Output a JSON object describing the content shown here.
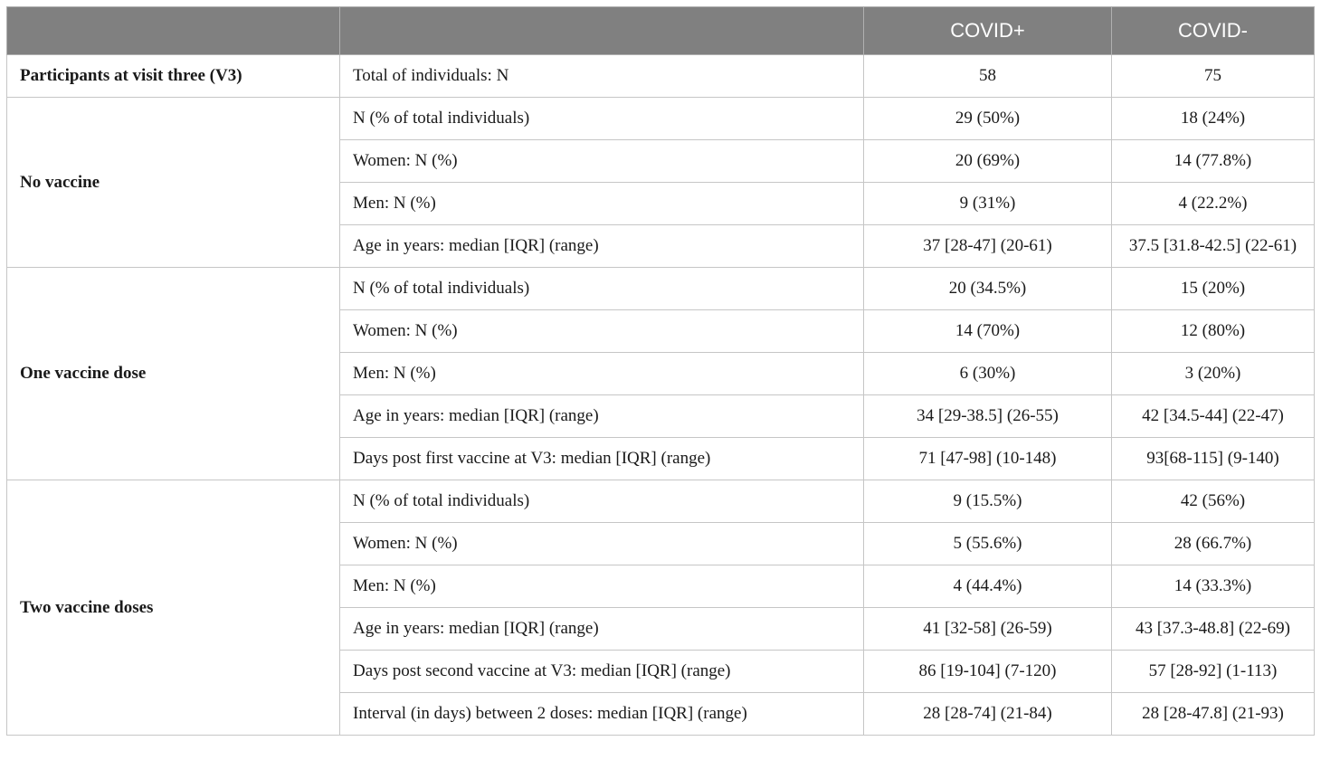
{
  "header": [
    "",
    "",
    "COVID+",
    "COVID-"
  ],
  "top_row": {
    "group": "Participants at visit three (V3)",
    "label": "Total of individuals: N",
    "covid_pos": "58",
    "covid_neg": "75"
  },
  "groups": [
    {
      "name": "No vaccine",
      "rows": [
        {
          "label": "N (% of total individuals)",
          "covid_pos": "29 (50%)",
          "covid_neg": "18 (24%)"
        },
        {
          "label": "Women: N (%)",
          "covid_pos": "20 (69%)",
          "covid_neg": "14 (77.8%)"
        },
        {
          "label": "Men: N (%)",
          "covid_pos": "9 (31%)",
          "covid_neg": "4 (22.2%)"
        },
        {
          "label": "Age in years: median [IQR] (range)",
          "covid_pos": "37 [28-47] (20-61)",
          "covid_neg": "37.5 [31.8-42.5] (22-61)"
        }
      ]
    },
    {
      "name": "One vaccine dose",
      "rows": [
        {
          "label": "N (% of total individuals)",
          "covid_pos": "20 (34.5%)",
          "covid_neg": "15 (20%)"
        },
        {
          "label": "Women: N (%)",
          "covid_pos": "14 (70%)",
          "covid_neg": "12 (80%)"
        },
        {
          "label": "Men: N (%)",
          "covid_pos": "6 (30%)",
          "covid_neg": "3 (20%)"
        },
        {
          "label": "Age in years: median [IQR] (range)",
          "covid_pos": "34 [29-38.5] (26-55)",
          "covid_neg": "42 [34.5-44] (22-47)"
        },
        {
          "label": "Days post first vaccine at V3: median [IQR] (range)",
          "covid_pos": "71 [47-98] (10-148)",
          "covid_neg": "93[68-115] (9-140)"
        }
      ]
    },
    {
      "name": "Two vaccine doses",
      "rows": [
        {
          "label": "N (% of total individuals)",
          "covid_pos": "9 (15.5%)",
          "covid_neg": "42 (56%)"
        },
        {
          "label": "Women: N (%)",
          "covid_pos": "5 (55.6%)",
          "covid_neg": "28 (66.7%)"
        },
        {
          "label": "Men: N (%)",
          "covid_pos": "4 (44.4%)",
          "covid_neg": "14 (33.3%)"
        },
        {
          "label": "Age in years: median [IQR] (range)",
          "covid_pos": "41 [32-58] (26-59)",
          "covid_neg": "43 [37.3-48.8] (22-69)"
        },
        {
          "label": "Days post second vaccine at V3: median [IQR] (range)",
          "covid_pos": "86 [19-104] (7-120)",
          "covid_neg": "57 [28-92] (1-113)"
        },
        {
          "label": "Interval (in days) between 2 doses: median [IQR] (range)",
          "covid_pos": "28 [28-74] (21-84)",
          "covid_neg": "28 [28-47.8] (21-93)"
        }
      ]
    }
  ]
}
